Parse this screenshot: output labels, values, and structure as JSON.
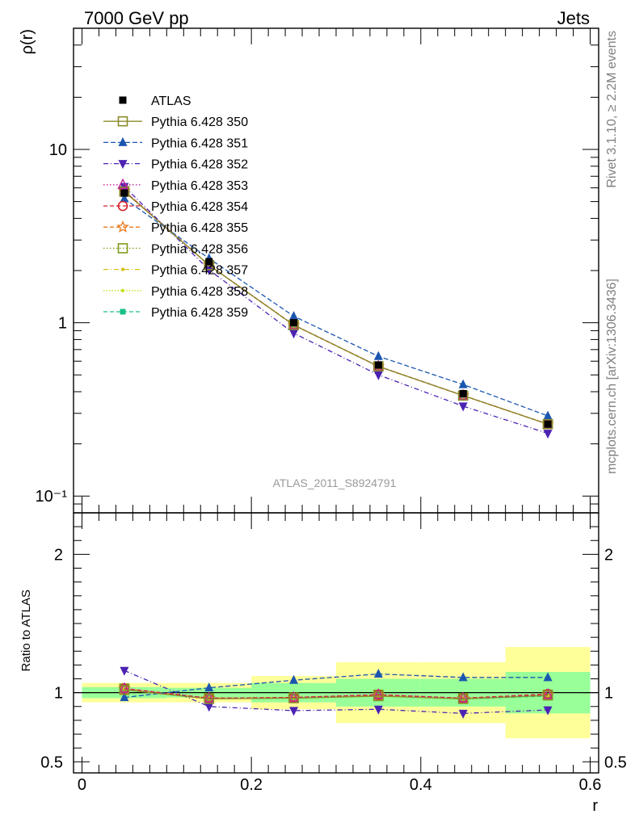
{
  "header": {
    "left": "7000 GeV pp",
    "right": "Jets"
  },
  "side_labels": {
    "top": "Rivet 3.1.10, ≥ 2.2M events",
    "bottom": "mcplots.cern.ch [arXiv:1306.3436]"
  },
  "watermark": "ATLAS_2011_S8924791",
  "chart_data": [
    {
      "type": "line",
      "panel": "main",
      "ylabel": "ρ(r)",
      "xlabel": "",
      "yscale": "log",
      "ylim": [
        0.08,
        50
      ],
      "xlim": [
        -0.01,
        0.61
      ],
      "ytick_labels": [
        "10⁻¹",
        "1",
        "10"
      ],
      "x": [
        0.05,
        0.15,
        0.25,
        0.35,
        0.45,
        0.55
      ],
      "series": [
        {
          "name": "ATLAS",
          "color": "#000000",
          "marker": "square-filled",
          "dash": "none",
          "values": [
            5.6,
            2.25,
            1.0,
            0.57,
            0.39,
            0.26
          ]
        },
        {
          "name": "Pythia 6.428 350",
          "color": "#8b8b2a",
          "marker": "square-open",
          "dash": "solid",
          "values": [
            5.7,
            2.15,
            0.97,
            0.56,
            0.38,
            0.26
          ]
        },
        {
          "name": "Pythia 6.428 351",
          "color": "#1a56b0",
          "marker": "triangle-up",
          "dash": "6,3",
          "values": [
            5.2,
            2.35,
            1.09,
            0.64,
            0.44,
            0.29
          ]
        },
        {
          "name": "Pythia 6.428 352",
          "color": "#4b22b3",
          "marker": "triangle-down",
          "dash": "6,3,1,3",
          "values": [
            6.1,
            2.02,
            0.87,
            0.5,
            0.33,
            0.23
          ]
        },
        {
          "name": "Pythia 6.428 353",
          "color": "#c0209a",
          "marker": "triangle-open",
          "dash": "1.5,2.5",
          "values": [
            5.75,
            2.15,
            0.97,
            0.56,
            0.38,
            0.26
          ]
        },
        {
          "name": "Pythia 6.428 354",
          "color": "#d6202a",
          "marker": "circle-open",
          "dash": "5,3",
          "values": [
            5.75,
            2.15,
            0.97,
            0.56,
            0.38,
            0.26
          ]
        },
        {
          "name": "Pythia 6.428 355",
          "color": "#e87a1a",
          "marker": "star-open",
          "dash": "5,3",
          "values": [
            5.75,
            2.15,
            0.97,
            0.56,
            0.38,
            0.26
          ]
        },
        {
          "name": "Pythia 6.428 356",
          "color": "#7f9b1a",
          "marker": "square-open",
          "dash": "1.5,2.5",
          "values": [
            5.75,
            2.15,
            0.97,
            0.56,
            0.38,
            0.26
          ]
        },
        {
          "name": "Pythia 6.428 357",
          "color": "#d8c21a",
          "marker": "dot",
          "dash": "6,3,1,3",
          "values": [
            5.75,
            2.15,
            0.97,
            0.56,
            0.38,
            0.26
          ]
        },
        {
          "name": "Pythia 6.428 358",
          "color": "#c8e01a",
          "marker": "dot",
          "dash": "1.5,2",
          "values": [
            5.75,
            2.15,
            0.97,
            0.56,
            0.38,
            0.26
          ]
        },
        {
          "name": "Pythia 6.428 359",
          "color": "#1ac08a",
          "marker": "square-small",
          "dash": "5,3",
          "values": [
            5.75,
            2.15,
            0.97,
            0.56,
            0.38,
            0.26
          ]
        }
      ]
    },
    {
      "type": "line",
      "panel": "ratio",
      "ylabel": "Ratio to ATLAS",
      "xlabel": "r",
      "ylim": [
        0.42,
        2.3
      ],
      "xlim": [
        -0.01,
        0.61
      ],
      "ytick_labels": [
        "0.5",
        "1",
        "2"
      ],
      "xtick_labels": [
        "0",
        "0.2",
        "0.4",
        "0.6"
      ],
      "x": [
        0.05,
        0.15,
        0.25,
        0.35,
        0.45,
        0.55
      ],
      "bins": [
        [
          0,
          0.1
        ],
        [
          0.1,
          0.2
        ],
        [
          0.2,
          0.3
        ],
        [
          0.3,
          0.4
        ],
        [
          0.4,
          0.5
        ],
        [
          0.5,
          0.6
        ]
      ],
      "band_inner": [
        [
          0.96,
          1.04
        ],
        [
          0.965,
          1.035
        ],
        [
          0.93,
          1.07
        ],
        [
          0.9,
          1.1
        ],
        [
          0.9,
          1.1
        ],
        [
          0.85,
          1.15
        ]
      ],
      "band_outer": [
        [
          0.93,
          1.07
        ],
        [
          0.93,
          1.07
        ],
        [
          0.88,
          1.12
        ],
        [
          0.78,
          1.22
        ],
        [
          0.78,
          1.22
        ],
        [
          0.67,
          1.33
        ]
      ],
      "reference": 1,
      "series": [
        {
          "name": "Pythia 6.428 350",
          "values": [
            1.02,
            0.955,
            0.96,
            0.975,
            0.955,
            0.98
          ]
        },
        {
          "name": "Pythia 6.428 351",
          "values": [
            0.965,
            1.035,
            1.09,
            1.135,
            1.11,
            1.11
          ]
        },
        {
          "name": "Pythia 6.428 352",
          "values": [
            1.16,
            0.9,
            0.87,
            0.88,
            0.85,
            0.875
          ]
        },
        {
          "name": "Pythia 6.428 353",
          "values": [
            1.03,
            0.96,
            0.965,
            0.985,
            0.96,
            0.985
          ]
        },
        {
          "name": "Pythia 6.428 354",
          "values": [
            1.03,
            0.96,
            0.965,
            0.985,
            0.96,
            0.99
          ]
        },
        {
          "name": "Pythia 6.428 355",
          "values": [
            1.03,
            0.96,
            0.965,
            0.985,
            0.96,
            0.985
          ]
        },
        {
          "name": "Pythia 6.428 356",
          "values": [
            1.03,
            0.96,
            0.965,
            0.985,
            0.96,
            0.985
          ]
        },
        {
          "name": "Pythia 6.428 357",
          "values": [
            1.03,
            0.96,
            0.965,
            0.98,
            0.96,
            0.98
          ]
        },
        {
          "name": "Pythia 6.428 358",
          "values": [
            1.03,
            0.96,
            0.965,
            0.98,
            0.96,
            0.98
          ]
        },
        {
          "name": "Pythia 6.428 359",
          "values": [
            1.03,
            0.96,
            0.965,
            0.98,
            0.955,
            0.975
          ]
        }
      ]
    }
  ]
}
